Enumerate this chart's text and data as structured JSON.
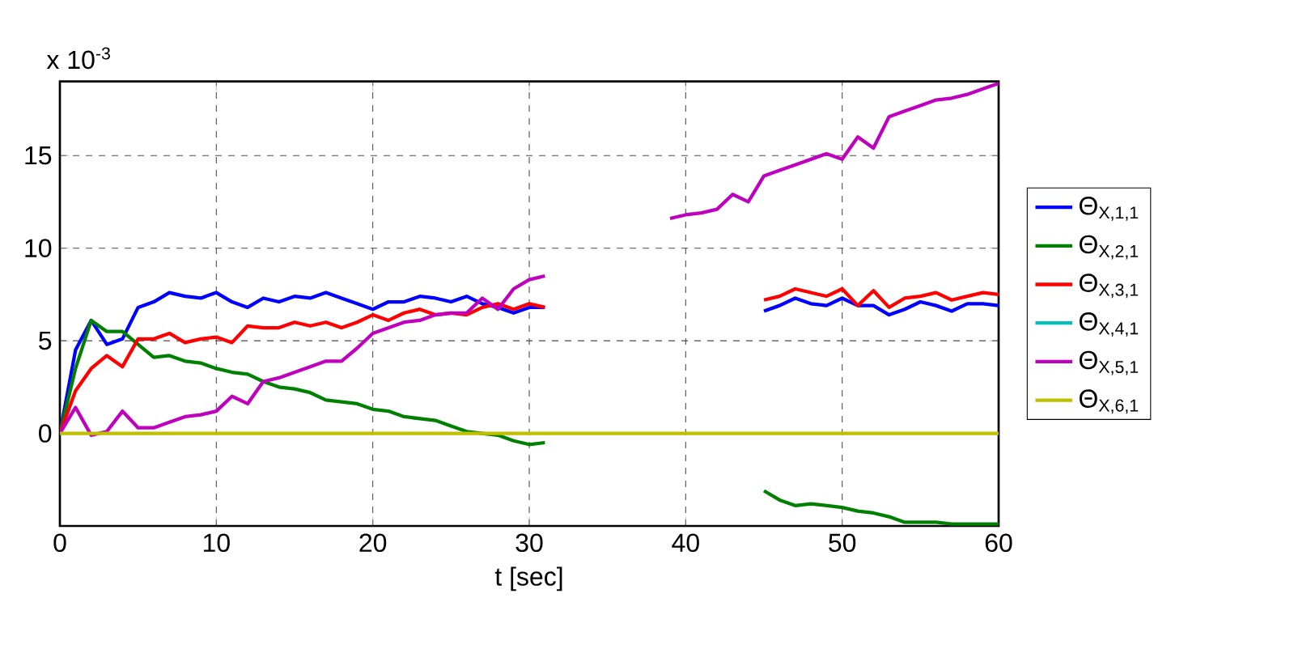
{
  "chart_data": {
    "type": "line",
    "xlabel": "t [sec]",
    "annotations": [
      "x 10$^{-3}$"
    ],
    "x": [
      0,
      1,
      2,
      3,
      4,
      5,
      6,
      7,
      8,
      9,
      10,
      11,
      12,
      13,
      14,
      15,
      16,
      17,
      18,
      19,
      20,
      21,
      22,
      23,
      24,
      25,
      26,
      27,
      28,
      29,
      30,
      31,
      32,
      33,
      34,
      35,
      36,
      37,
      38,
      39,
      40,
      41,
      42,
      43,
      44,
      45,
      46,
      47,
      48,
      49,
      50,
      51,
      52,
      53,
      54,
      55,
      56,
      57,
      58,
      59,
      60
    ],
    "xlim": [
      0,
      60
    ],
    "xticks": [
      0,
      10,
      20,
      30,
      40,
      50,
      60
    ],
    "ylim": [
      -5,
      19
    ],
    "yticks": [
      0,
      5,
      10,
      15
    ],
    "grid": true,
    "legend": "right",
    "series": [
      {
        "name": "Θ$_{X,1,1}$",
        "color": "#0000ff",
        "values": [
          0,
          4.5,
          6.1,
          4.8,
          5.1,
          6.8,
          7.1,
          7.6,
          7.4,
          7.3,
          7.6,
          7.1,
          6.8,
          7.3,
          7.1,
          7.4,
          7.3,
          7.6,
          7.3,
          7.0,
          6.7,
          7.1,
          7.1,
          7.4,
          7.3,
          7.1,
          7.4,
          7.0,
          6.8,
          6.5,
          6.8,
          6.8,
          null,
          null,
          null,
          null,
          null,
          null,
          null,
          null,
          null,
          null,
          null,
          null,
          null,
          6.6,
          6.9,
          7.3,
          7.0,
          6.9,
          7.3,
          6.9,
          6.9,
          6.4,
          6.7,
          7.1,
          6.9,
          6.6,
          7.0,
          7.0,
          6.9
        ]
      },
      {
        "name": "Θ$_{X,2,1}$",
        "color": "#008000",
        "values": [
          0,
          3.5,
          6.1,
          5.5,
          5.5,
          4.8,
          4.1,
          4.2,
          3.9,
          3.8,
          3.5,
          3.3,
          3.2,
          2.8,
          2.5,
          2.4,
          2.2,
          1.8,
          1.7,
          1.6,
          1.3,
          1.2,
          0.9,
          0.8,
          0.7,
          0.4,
          0.1,
          0,
          -0.1,
          -0.4,
          -0.6,
          -0.5,
          null,
          null,
          null,
          null,
          null,
          null,
          null,
          null,
          null,
          null,
          null,
          null,
          null,
          -3.1,
          -3.6,
          -3.9,
          -3.8,
          -3.9,
          -4.0,
          -4.2,
          -4.3,
          -4.5,
          -4.8,
          -4.8,
          -4.8,
          -4.9,
          -4.9,
          -4.9,
          -4.9
        ]
      },
      {
        "name": "Θ$_{X,3,1}$",
        "color": "#ff0000",
        "values": [
          0,
          2.3,
          3.5,
          4.2,
          3.6,
          5.1,
          5.1,
          5.4,
          4.9,
          5.1,
          5.2,
          4.9,
          5.8,
          5.7,
          5.7,
          6.0,
          5.8,
          6.0,
          5.7,
          6.0,
          6.4,
          6.1,
          6.5,
          6.7,
          6.4,
          6.5,
          6.4,
          6.8,
          7.0,
          6.7,
          7.0,
          6.8,
          null,
          null,
          null,
          null,
          null,
          null,
          null,
          null,
          null,
          null,
          null,
          null,
          null,
          7.2,
          7.4,
          7.8,
          7.6,
          7.4,
          7.8,
          6.9,
          7.7,
          6.8,
          7.3,
          7.4,
          7.6,
          7.2,
          7.4,
          7.6,
          7.5
        ]
      },
      {
        "name": "Θ$_{X,4,1}$",
        "color": "#00bfbf",
        "values": [
          null,
          null,
          null,
          null,
          null,
          null,
          null,
          null,
          null,
          null,
          null,
          null,
          null,
          null,
          null,
          null,
          null,
          null,
          null,
          null,
          null,
          null,
          null,
          null,
          null,
          null,
          null,
          null,
          null,
          null,
          null,
          null,
          null,
          null,
          null,
          null,
          null,
          null,
          null,
          null,
          null,
          null,
          null,
          null,
          null,
          null,
          null,
          null,
          null,
          null,
          null,
          null,
          null,
          null,
          null,
          null,
          null,
          null,
          null,
          null,
          null
        ]
      },
      {
        "name": "Θ$_{X,5,1}$",
        "color": "#bf00bf",
        "values": [
          0,
          1.4,
          -0.1,
          0.1,
          1.2,
          0.3,
          0.3,
          0.6,
          0.9,
          1.0,
          1.2,
          2.0,
          1.6,
          2.8,
          3.0,
          3.3,
          3.6,
          3.9,
          3.9,
          4.6,
          5.4,
          5.7,
          6.0,
          6.1,
          6.4,
          6.5,
          6.5,
          7.3,
          6.7,
          7.8,
          8.3,
          8.5,
          null,
          null,
          null,
          null,
          null,
          null,
          null,
          11.6,
          11.8,
          11.9,
          12.1,
          12.9,
          12.5,
          13.9,
          14.2,
          14.5,
          14.8,
          15.1,
          14.8,
          16.0,
          15.4,
          17.1,
          17.4,
          17.7,
          18.0,
          18.1,
          18.3,
          18.6,
          18.9
        ]
      },
      {
        "name": "Θ$_{X,6,1}$",
        "color": "#bfbf00",
        "values": [
          0,
          0,
          0,
          0,
          0,
          0,
          0,
          0,
          0,
          0,
          0,
          0,
          0,
          0,
          0,
          0,
          0,
          0,
          0,
          0,
          0,
          0,
          0,
          0,
          0,
          0,
          0,
          0,
          0,
          0,
          0,
          0,
          0,
          0,
          0,
          0,
          0,
          0,
          0,
          0,
          0,
          0,
          0,
          0,
          0,
          0,
          0,
          0,
          0,
          0,
          0,
          0,
          0,
          0,
          0,
          0,
          0,
          0,
          0,
          0,
          0
        ]
      }
    ]
  }
}
